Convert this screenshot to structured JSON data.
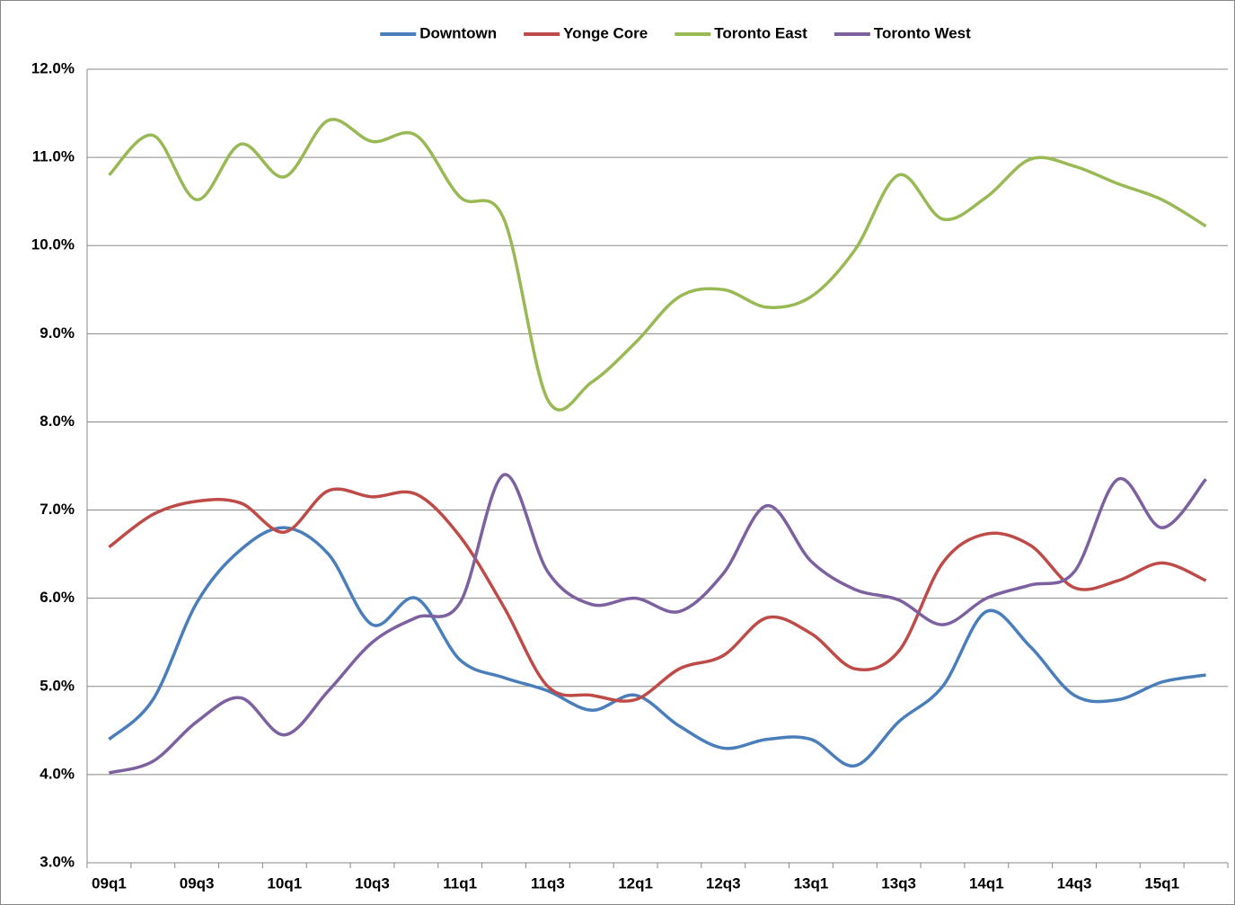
{
  "chart_data": {
    "type": "line",
    "categories": [
      "09q1",
      null,
      "09q3",
      null,
      "10q1",
      null,
      "10q3",
      null,
      "11q1",
      null,
      "11q3",
      null,
      "12q1",
      null,
      "12q3",
      null,
      "13q1",
      null,
      "13q3",
      null,
      "14q1",
      null,
      "14q3",
      null,
      "15q1",
      null
    ],
    "series": [
      {
        "name": "Downtown",
        "color": "#4a7ebb",
        "values": [
          4.4,
          4.85,
          5.95,
          6.55,
          6.8,
          6.5,
          5.7,
          6.0,
          5.3,
          5.1,
          4.95,
          4.73,
          4.9,
          4.55,
          4.3,
          4.4,
          4.4,
          4.1,
          4.6,
          5.0,
          5.85,
          5.45,
          4.9,
          4.85,
          5.05,
          5.13
        ]
      },
      {
        "name": "Yonge Core",
        "color": "#be4b48",
        "values": [
          6.58,
          6.95,
          7.1,
          7.08,
          6.75,
          7.22,
          7.15,
          7.18,
          6.7,
          5.9,
          5.0,
          4.9,
          4.85,
          5.2,
          5.35,
          5.78,
          5.6,
          5.2,
          5.4,
          6.4,
          6.73,
          6.6,
          6.12,
          6.2,
          6.4,
          6.2
        ]
      },
      {
        "name": "Toronto East",
        "color": "#98b954",
        "values": [
          10.8,
          11.25,
          10.52,
          11.15,
          10.78,
          11.42,
          11.18,
          11.25,
          10.55,
          10.3,
          8.25,
          8.45,
          8.9,
          9.42,
          9.5,
          9.3,
          9.42,
          9.95,
          10.8,
          10.3,
          10.55,
          10.98,
          10.9,
          10.7,
          10.52,
          10.22
        ]
      },
      {
        "name": "Toronto West",
        "color": "#7d60a0",
        "values": [
          4.02,
          4.15,
          4.6,
          4.87,
          4.45,
          4.95,
          5.5,
          5.78,
          5.95,
          7.4,
          6.3,
          5.93,
          6.0,
          5.85,
          6.28,
          7.05,
          6.42,
          6.1,
          5.98,
          5.7,
          6.0,
          6.15,
          6.3,
          7.35,
          6.8,
          7.35
        ]
      }
    ],
    "ylim": [
      3,
      12
    ],
    "yticks": [
      {
        "value": 3,
        "label": "3.0%"
      },
      {
        "value": 4,
        "label": "4.0%"
      },
      {
        "value": 5,
        "label": "5.0%"
      },
      {
        "value": 6,
        "label": "6.0%"
      },
      {
        "value": 7,
        "label": "7.0%"
      },
      {
        "value": 8,
        "label": "8.0%"
      },
      {
        "value": 9,
        "label": "9.0%"
      },
      {
        "value": 10,
        "label": "10.0%"
      },
      {
        "value": 11,
        "label": "11.0%"
      },
      {
        "value": 12,
        "label": "12.0%"
      }
    ],
    "grid": true,
    "legend": "top",
    "smooth": true
  }
}
